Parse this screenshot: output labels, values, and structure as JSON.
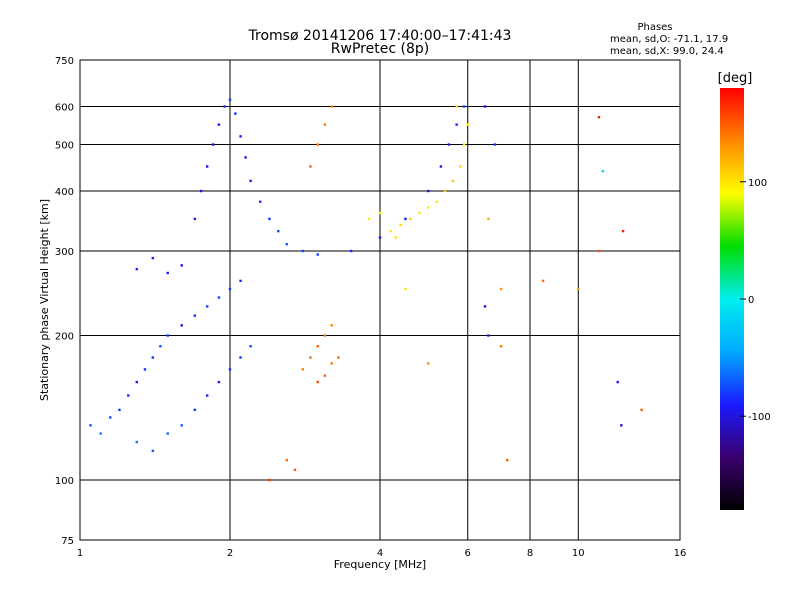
{
  "chart_data": {
    "type": "scatter",
    "title": "Tromsø 20141206 17:40:00–17:41:43",
    "subtitle": "RwPretec (8p)",
    "stats": {
      "heading": "Phases",
      "line_o": "mean, sd,O: -71.1, 17.9",
      "line_x": "mean, sd,X:  99.0, 24.4"
    },
    "xlabel": "Frequency [MHz]",
    "ylabel": "Stationary phase Virtual Height [km]",
    "x_scale": "log",
    "y_scale": "log",
    "xlim": [
      1,
      16
    ],
    "ylim": [
      75,
      750
    ],
    "x_ticks": [
      1,
      2,
      4,
      6,
      8,
      10,
      16
    ],
    "y_ticks": [
      75,
      100,
      200,
      300,
      400,
      500,
      600,
      750
    ],
    "grid": true,
    "colorbar": {
      "label": "[deg]",
      "range": [
        -180,
        180
      ],
      "ticks": [
        100,
        0,
        -100
      ],
      "colormap": [
        "#000000",
        "#3a006e",
        "#1a1aff",
        "#00aaff",
        "#00eeee",
        "#00dd00",
        "#ffff00",
        "#ff8800",
        "#ff0000"
      ]
    },
    "series": [
      {
        "comment": "low F1/E-region blue-cyan cloud",
        "points": [
          [
            1.05,
            130,
            -70
          ],
          [
            1.1,
            125,
            -60
          ],
          [
            1.15,
            135,
            -75
          ],
          [
            1.2,
            140,
            -80
          ],
          [
            1.25,
            150,
            -85
          ],
          [
            1.3,
            160,
            -90
          ],
          [
            1.35,
            170,
            -85
          ],
          [
            1.4,
            180,
            -80
          ],
          [
            1.45,
            190,
            -75
          ],
          [
            1.5,
            200,
            -80
          ],
          [
            1.3,
            120,
            -60
          ],
          [
            1.4,
            115,
            -70
          ],
          [
            1.5,
            125,
            -65
          ],
          [
            1.6,
            130,
            -70
          ],
          [
            1.7,
            140,
            -80
          ],
          [
            1.8,
            150,
            -85
          ],
          [
            1.9,
            160,
            -90
          ],
          [
            2.0,
            170,
            -85
          ],
          [
            2.1,
            180,
            -80
          ],
          [
            2.2,
            190,
            -75
          ],
          [
            1.6,
            210,
            -90
          ],
          [
            1.7,
            220,
            -85
          ],
          [
            1.8,
            230,
            -80
          ],
          [
            1.9,
            240,
            -75
          ],
          [
            2.0,
            250,
            -80
          ],
          [
            2.1,
            260,
            -85
          ],
          [
            1.5,
            270,
            -90
          ],
          [
            1.6,
            280,
            -95
          ],
          [
            1.4,
            290,
            -90
          ],
          [
            1.3,
            275,
            -85
          ]
        ]
      },
      {
        "comment": "upper F2 blue trace",
        "points": [
          [
            1.7,
            350,
            -90
          ],
          [
            1.75,
            400,
            -95
          ],
          [
            1.8,
            450,
            -100
          ],
          [
            1.85,
            500,
            -95
          ],
          [
            1.9,
            550,
            -90
          ],
          [
            1.95,
            600,
            -85
          ],
          [
            2.0,
            620,
            -80
          ],
          [
            2.05,
            580,
            -85
          ],
          [
            2.1,
            520,
            -90
          ],
          [
            2.15,
            470,
            -95
          ],
          [
            2.2,
            420,
            -90
          ],
          [
            2.3,
            380,
            -85
          ],
          [
            2.4,
            350,
            -80
          ],
          [
            2.5,
            330,
            -75
          ],
          [
            2.6,
            310,
            -70
          ],
          [
            2.8,
            300,
            -75
          ],
          [
            3.0,
            295,
            -80
          ],
          [
            3.5,
            300,
            -85
          ],
          [
            4.0,
            320,
            -90
          ],
          [
            4.5,
            350,
            -95
          ],
          [
            5.0,
            400,
            -100
          ],
          [
            5.3,
            450,
            -95
          ],
          [
            5.5,
            500,
            -90
          ],
          [
            5.7,
            550,
            -85
          ],
          [
            5.9,
            600,
            -80
          ]
        ]
      },
      {
        "comment": "orange/red O-mode returns",
        "points": [
          [
            2.8,
            170,
            140
          ],
          [
            2.9,
            180,
            145
          ],
          [
            3.0,
            190,
            150
          ],
          [
            3.1,
            200,
            140
          ],
          [
            3.2,
            210,
            135
          ],
          [
            2.9,
            450,
            150
          ],
          [
            3.0,
            500,
            145
          ],
          [
            3.1,
            550,
            140
          ],
          [
            3.2,
            600,
            135
          ],
          [
            2.6,
            110,
            145
          ],
          [
            2.7,
            105,
            150
          ],
          [
            3.0,
            160,
            155
          ],
          [
            3.1,
            165,
            150
          ],
          [
            3.2,
            175,
            140
          ],
          [
            3.3,
            180,
            145
          ]
        ]
      },
      {
        "comment": "yellow X-mode cluster",
        "points": [
          [
            4.2,
            330,
            100
          ],
          [
            4.4,
            340,
            105
          ],
          [
            4.6,
            350,
            110
          ],
          [
            4.8,
            360,
            100
          ],
          [
            5.0,
            370,
            95
          ],
          [
            5.2,
            380,
            100
          ],
          [
            5.4,
            400,
            105
          ],
          [
            5.6,
            420,
            110
          ],
          [
            5.8,
            450,
            105
          ],
          [
            5.9,
            500,
            100
          ],
          [
            6.0,
            550,
            95
          ],
          [
            5.7,
            600,
            100
          ],
          [
            4.0,
            360,
            90
          ],
          [
            3.8,
            350,
            95
          ],
          [
            4.3,
            320,
            100
          ]
        ]
      },
      {
        "comment": "scattered sparse points",
        "points": [
          [
            6.5,
            600,
            -90
          ],
          [
            6.8,
            500,
            -80
          ],
          [
            6.6,
            350,
            120
          ],
          [
            7.0,
            250,
            130
          ],
          [
            7.0,
            190,
            140
          ],
          [
            7.2,
            110,
            150
          ],
          [
            8.5,
            260,
            145
          ],
          [
            10.0,
            250,
            130
          ],
          [
            11.0,
            570,
            170
          ],
          [
            11.2,
            440,
            -10
          ],
          [
            11.0,
            300,
            150
          ],
          [
            12.3,
            330,
            170
          ],
          [
            12.0,
            160,
            -90
          ],
          [
            12.2,
            130,
            -100
          ],
          [
            13.4,
            140,
            150
          ],
          [
            4.5,
            250,
            100
          ],
          [
            5.0,
            175,
            130
          ],
          [
            6.5,
            230,
            -100
          ],
          [
            6.6,
            200,
            -90
          ],
          [
            2.4,
            100,
            160
          ]
        ]
      }
    ]
  }
}
